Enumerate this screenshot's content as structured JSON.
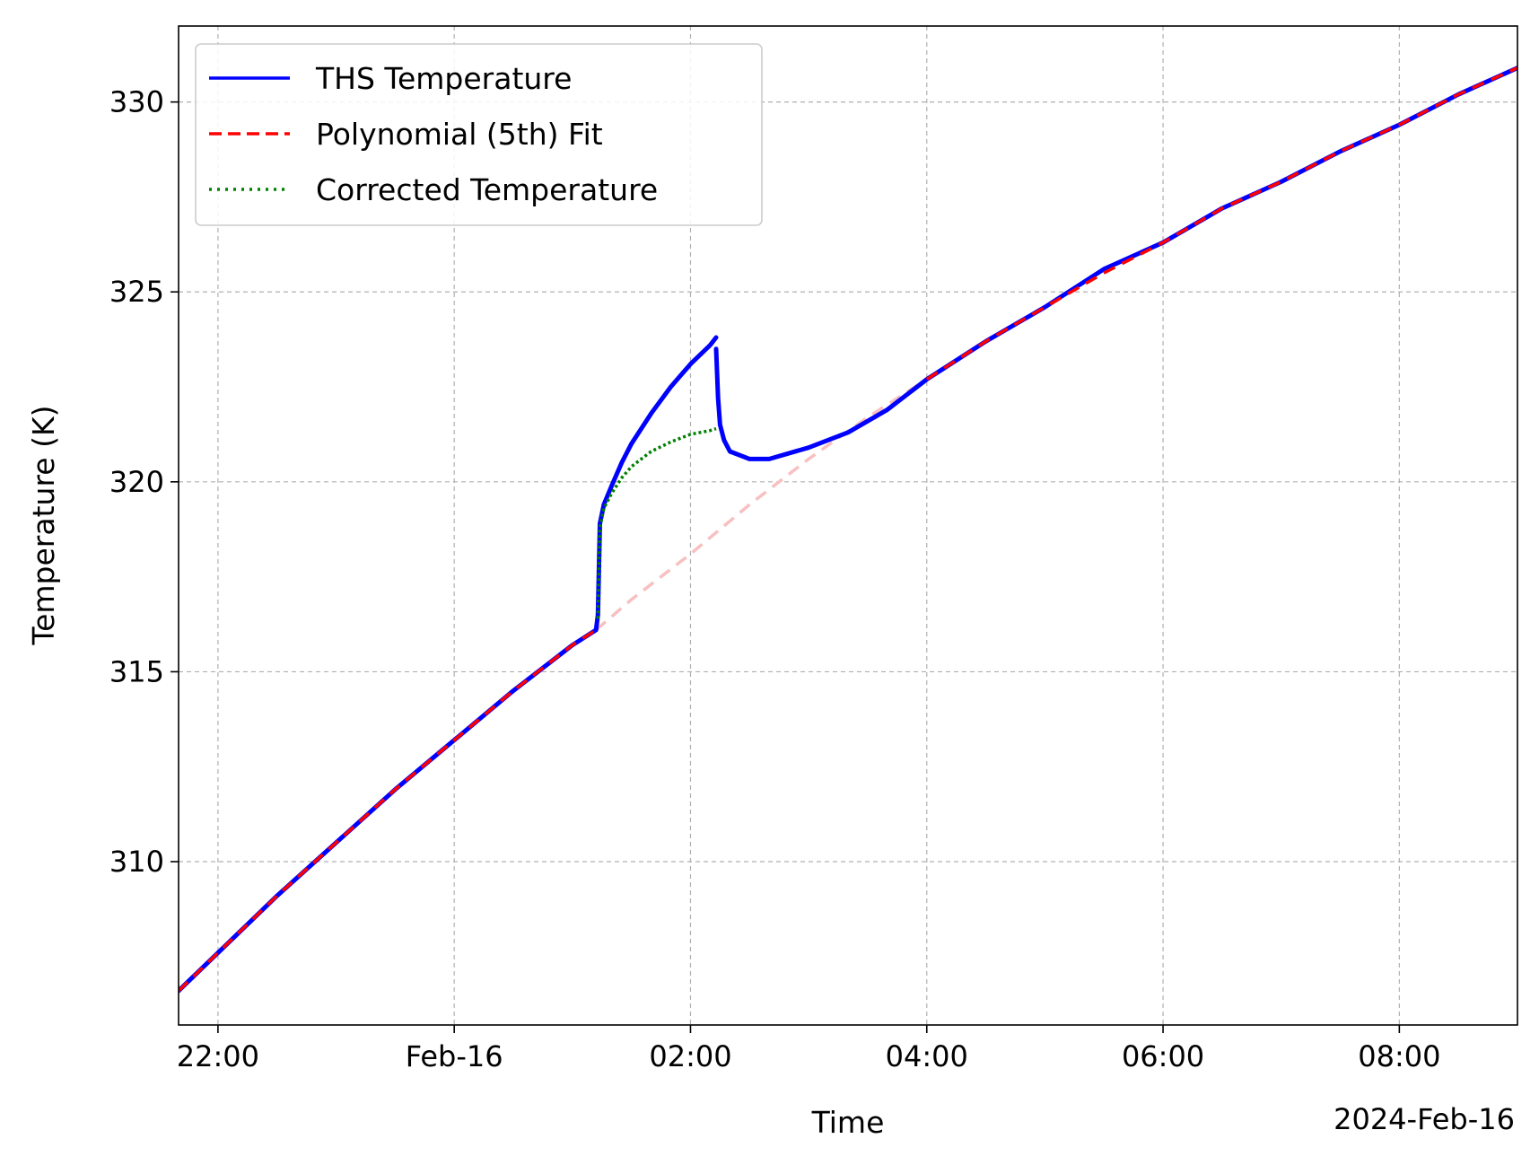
{
  "chart_data": {
    "type": "line",
    "title": "",
    "xlabel": "Time",
    "ylabel": "Temperature (K)",
    "x_offset_label": "2024-Feb-16",
    "xlim": [
      "2024-02-15 21:40",
      "2024-02-16 09:00"
    ],
    "ylim": [
      305.7,
      332.0
    ],
    "x_ticks": [
      {
        "time": "2024-02-15 22:00",
        "label": "22:00"
      },
      {
        "time": "2024-02-16 00:00",
        "label": "Feb-16"
      },
      {
        "time": "2024-02-16 02:00",
        "label": "02:00"
      },
      {
        "time": "2024-02-16 04:00",
        "label": "04:00"
      },
      {
        "time": "2024-02-16 06:00",
        "label": "06:00"
      },
      {
        "time": "2024-02-16 08:00",
        "label": "08:00"
      }
    ],
    "y_ticks": [
      310,
      315,
      320,
      325,
      330
    ],
    "y_tick_labels": [
      "310",
      "315",
      "320",
      "325",
      "330"
    ],
    "grid": true,
    "legend_position": "top-left",
    "series": [
      {
        "name": "THS Temperature",
        "color": "#0000ff",
        "style": "solid",
        "segments": [
          [
            [
              "2024-02-15 21:40",
              306.6
            ],
            [
              "2024-02-15 22:00",
              307.6
            ],
            [
              "2024-02-15 22:30",
              309.1
            ],
            [
              "2024-02-15 23:00",
              310.5
            ],
            [
              "2024-02-15 23:30",
              311.9
            ],
            [
              "2024-02-16 00:00",
              313.2
            ],
            [
              "2024-02-16 00:30",
              314.5
            ],
            [
              "2024-02-16 01:00",
              315.7
            ],
            [
              "2024-02-16 01:12",
              316.1
            ],
            [
              "2024-02-16 01:13",
              316.5
            ],
            [
              "2024-02-16 01:14",
              318.9
            ],
            [
              "2024-02-16 01:16",
              319.4
            ],
            [
              "2024-02-16 01:20",
              319.9
            ],
            [
              "2024-02-16 01:25",
              320.5
            ],
            [
              "2024-02-16 01:30",
              321.0
            ],
            [
              "2024-02-16 01:40",
              321.8
            ],
            [
              "2024-02-16 01:50",
              322.5
            ],
            [
              "2024-02-16 02:00",
              323.1
            ],
            [
              "2024-02-16 02:10",
              323.6
            ],
            [
              "2024-02-16 02:13",
              323.8
            ]
          ],
          [
            [
              "2024-02-16 02:13",
              323.5
            ],
            [
              "2024-02-16 02:14",
              322.2
            ],
            [
              "2024-02-16 02:15",
              321.5
            ],
            [
              "2024-02-16 02:17",
              321.1
            ],
            [
              "2024-02-16 02:20",
              320.8
            ],
            [
              "2024-02-16 02:30",
              320.6
            ],
            [
              "2024-02-16 02:40",
              320.6
            ],
            [
              "2024-02-16 03:00",
              320.9
            ],
            [
              "2024-02-16 03:20",
              321.3
            ],
            [
              "2024-02-16 03:40",
              321.9
            ],
            [
              "2024-02-16 04:00",
              322.7
            ],
            [
              "2024-02-16 04:30",
              323.7
            ],
            [
              "2024-02-16 05:00",
              324.6
            ],
            [
              "2024-02-16 05:30",
              325.6
            ],
            [
              "2024-02-16 06:00",
              326.3
            ],
            [
              "2024-02-16 06:30",
              327.2
            ],
            [
              "2024-02-16 07:00",
              327.9
            ],
            [
              "2024-02-16 07:30",
              328.7
            ],
            [
              "2024-02-16 08:00",
              329.4
            ],
            [
              "2024-02-16 08:30",
              330.2
            ],
            [
              "2024-02-16 09:00",
              330.9
            ]
          ]
        ]
      },
      {
        "name": "Polynomial (5th) Fit",
        "color": "#ff0000",
        "style": "dashed",
        "faded_range": [
          "2024-02-16 01:12",
          "2024-02-16 04:00"
        ],
        "faded_color": "#f8c0c0",
        "points": [
          [
            "2024-02-15 21:40",
            306.6
          ],
          [
            "2024-02-15 22:00",
            307.6
          ],
          [
            "2024-02-15 22:30",
            309.1
          ],
          [
            "2024-02-15 23:00",
            310.5
          ],
          [
            "2024-02-15 23:30",
            311.9
          ],
          [
            "2024-02-16 00:00",
            313.2
          ],
          [
            "2024-02-16 00:30",
            314.5
          ],
          [
            "2024-02-16 01:00",
            315.7
          ],
          [
            "2024-02-16 01:12",
            316.1
          ],
          [
            "2024-02-16 01:30",
            316.9
          ],
          [
            "2024-02-16 02:00",
            318.1
          ],
          [
            "2024-02-16 02:30",
            319.4
          ],
          [
            "2024-02-16 03:00",
            320.6
          ],
          [
            "2024-02-16 03:30",
            321.7
          ],
          [
            "2024-02-16 04:00",
            322.7
          ],
          [
            "2024-02-16 04:30",
            323.7
          ],
          [
            "2024-02-16 05:00",
            324.6
          ],
          [
            "2024-02-16 05:30",
            325.5
          ],
          [
            "2024-02-16 06:00",
            326.3
          ],
          [
            "2024-02-16 06:30",
            327.2
          ],
          [
            "2024-02-16 07:00",
            327.9
          ],
          [
            "2024-02-16 07:30",
            328.7
          ],
          [
            "2024-02-16 08:00",
            329.4
          ],
          [
            "2024-02-16 08:30",
            330.2
          ],
          [
            "2024-02-16 09:00",
            330.9
          ]
        ]
      },
      {
        "name": "Corrected Temperature",
        "color": "#008000",
        "style": "dotted",
        "points": [
          [
            "2024-02-16 01:13",
            316.4
          ],
          [
            "2024-02-16 01:14",
            318.8
          ],
          [
            "2024-02-16 01:16",
            319.3
          ],
          [
            "2024-02-16 01:20",
            319.7
          ],
          [
            "2024-02-16 01:25",
            320.1
          ],
          [
            "2024-02-16 01:30",
            320.4
          ],
          [
            "2024-02-16 01:40",
            320.8
          ],
          [
            "2024-02-16 01:50",
            321.05
          ],
          [
            "2024-02-16 02:00",
            321.25
          ],
          [
            "2024-02-16 02:10",
            321.35
          ],
          [
            "2024-02-16 02:13",
            321.4
          ]
        ]
      }
    ]
  }
}
